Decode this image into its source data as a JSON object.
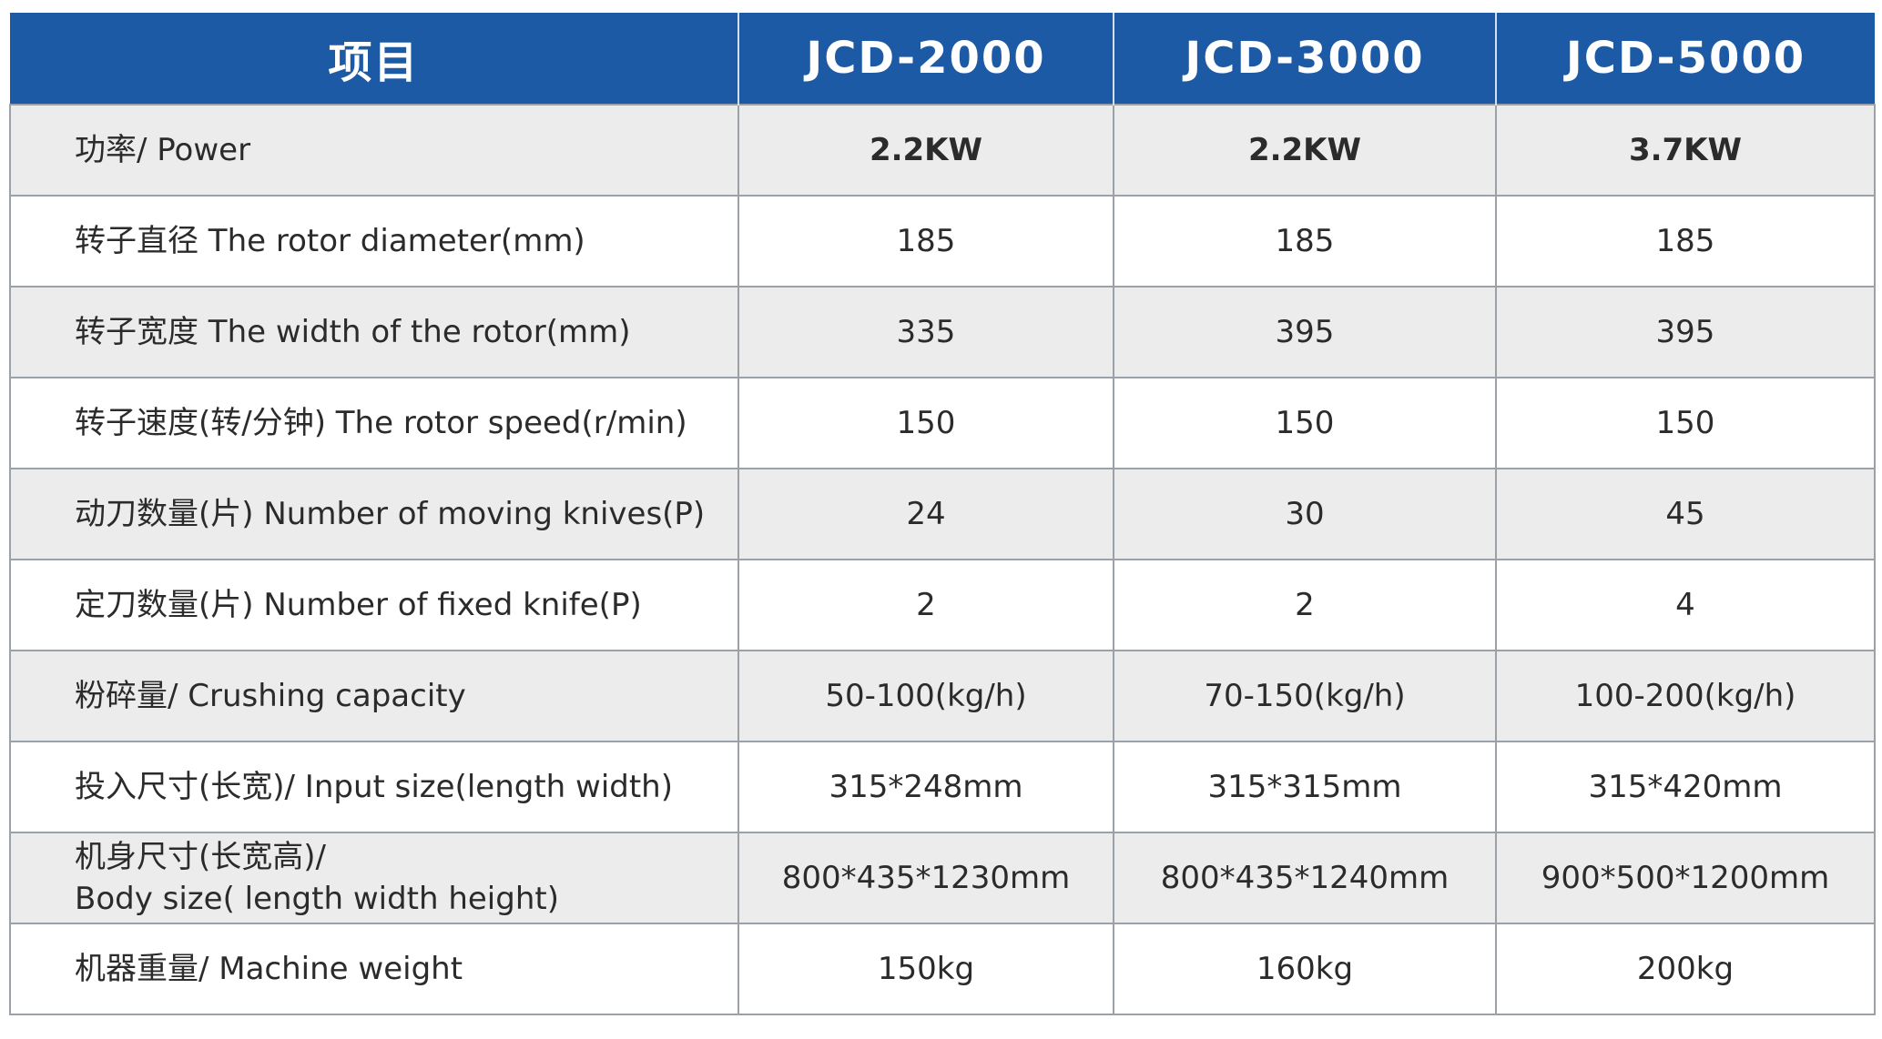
{
  "table": {
    "headers": [
      "项目",
      "JCD-2000",
      "JCD-3000",
      "JCD-5000"
    ],
    "rows": [
      {
        "label": "功率/ Power",
        "label2": "",
        "values": [
          "2.2KW",
          "2.2KW",
          "3.7KW"
        ],
        "bold": true
      },
      {
        "label": "转子直径 The rotor diameter(mm)",
        "label2": "",
        "values": [
          "185",
          "185",
          "185"
        ],
        "bold": false
      },
      {
        "label": "转子宽度 The width of the rotor(mm)",
        "label2": "",
        "values": [
          "335",
          "395",
          "395"
        ],
        "bold": false
      },
      {
        "label": "转子速度(转/分钟) The rotor speed(r/min)",
        "label2": "",
        "values": [
          "150",
          "150",
          "150"
        ],
        "bold": false
      },
      {
        "label": "动刀数量(片) Number of moving knives(P)",
        "label2": "",
        "values": [
          "24",
          "30",
          "45"
        ],
        "bold": false
      },
      {
        "label": "定刀数量(片) Number of fixed knife(P)",
        "label2": "",
        "values": [
          "2",
          "2",
          "4"
        ],
        "bold": false
      },
      {
        "label": "粉碎量/ Crushing capacity",
        "label2": "",
        "values": [
          "50-100(kg/h)",
          "70-150(kg/h)",
          "100-200(kg/h)"
        ],
        "bold": false
      },
      {
        "label": "投入尺寸(长宽)/ Input size(length width)",
        "label2": "",
        "values": [
          "315*248mm",
          "315*315mm",
          "315*420mm"
        ],
        "bold": false
      },
      {
        "label": "机身尺寸(长宽高)/",
        "label2": "Body size( length width height)",
        "values": [
          "800*435*1230mm",
          "800*435*1240mm",
          "900*500*1200mm"
        ],
        "bold": false
      },
      {
        "label": "机器重量/ Machine weight",
        "label2": "",
        "values": [
          "150kg",
          "160kg",
          "200kg"
        ],
        "bold": false
      }
    ]
  },
  "colors": {
    "header_bg": "#1c5aa6",
    "header_text": "#ffffff",
    "row_alt_bg": "#ececec",
    "border": "#9aa1a8"
  }
}
